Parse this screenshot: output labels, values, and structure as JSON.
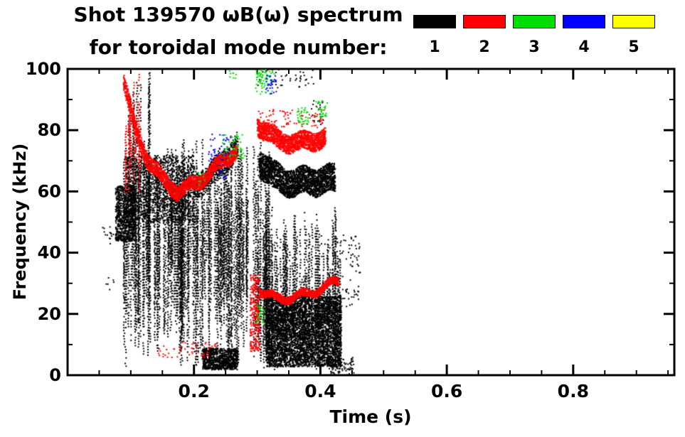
{
  "header": {
    "title": "Shot 139570 ωB(ω) spectrum",
    "subtitle": "for toroidal mode number:"
  },
  "legend": {
    "entries": [
      {
        "label": "1",
        "color": "#000000"
      },
      {
        "label": "2",
        "color": "#ff0000"
      },
      {
        "label": "3",
        "color": "#00dd00"
      },
      {
        "label": "4",
        "color": "#0000ff"
      },
      {
        "label": "5",
        "color": "#ffff00"
      }
    ]
  },
  "chart_data": {
    "type": "scatter",
    "title": "Shot 139570 ωB(ω) spectrum for toroidal mode number",
    "xlabel": "Time (s)",
    "ylabel": "Frequency (kHz)",
    "xlim": [
      0,
      0.96
    ],
    "ylim": [
      0,
      100
    ],
    "x_major_ticks": [
      0.2,
      0.4,
      0.6,
      0.8
    ],
    "x_tick_labels": [
      "0.2",
      "0.4",
      "0.6",
      "0.8"
    ],
    "x_minor_step": 0.05,
    "y_major_ticks": [
      0,
      20,
      40,
      60,
      80,
      100
    ],
    "y_tick_labels": [
      "0",
      "20",
      "40",
      "60",
      "80",
      "100"
    ],
    "y_minor_step": 10,
    "grid": false,
    "legend_position": "top-right",
    "series": [
      {
        "name": "n=1",
        "color": "#000000",
        "features": [
          {
            "type": "scatter",
            "t": [
              0.052,
              0.075
            ],
            "f": [
              43,
              49
            ],
            "points": 14
          },
          {
            "type": "scatter",
            "t": [
              0.058,
              0.072
            ],
            "f": [
              27,
              33
            ],
            "points": 6
          },
          {
            "type": "blob",
            "t": [
              0.075,
              0.107
            ],
            "f": [
              44,
              62
            ],
            "points": 800
          },
          {
            "type": "striations",
            "t": [
              0.085,
              0.285
            ],
            "count": 160,
            "fbot": [
              3,
              38
            ],
            "ftop": [
              46,
              78
            ]
          },
          {
            "type": "striations",
            "t": [
              0.095,
              0.13
            ],
            "count": 10,
            "fbot": [
              45,
              60
            ],
            "ftop": [
              85,
              100
            ]
          },
          {
            "type": "blob",
            "t": [
              0.09,
              0.2
            ],
            "f": [
              50,
              72
            ],
            "points": 1400
          },
          {
            "type": "band",
            "path": [
              [
                0.2,
                62
              ],
              [
                0.24,
                68
              ],
              [
                0.268,
                76
              ]
            ],
            "thickness": 8,
            "density": 10
          },
          {
            "type": "blob",
            "t": [
              0.213,
              0.268
            ],
            "f": [
              2,
              9
            ],
            "points": 900
          },
          {
            "type": "striations",
            "t": [
              0.293,
              0.318
            ],
            "count": 12,
            "fbot": [
              4,
              18
            ],
            "ftop": [
              58,
              78
            ]
          },
          {
            "type": "band",
            "path": [
              [
                0.303,
                70
              ],
              [
                0.325,
                65
              ],
              [
                0.36,
                63
              ],
              [
                0.4,
                64
              ],
              [
                0.423,
                64
              ]
            ],
            "thickness": 9,
            "density": 30
          },
          {
            "type": "striations",
            "t": [
              0.3,
              0.432
            ],
            "count": 80,
            "fbot": [
              2,
              18
            ],
            "ftop": [
              26,
              56
            ]
          },
          {
            "type": "blob",
            "t": [
              0.313,
              0.432
            ],
            "f": [
              3,
              26
            ],
            "points": 4200
          },
          {
            "type": "scatter",
            "t": [
              0.3,
              0.39
            ],
            "f": [
              94,
              100
            ],
            "points": 40
          },
          {
            "type": "scatter",
            "t": [
              0.4,
              0.462
            ],
            "f": [
              22,
              46
            ],
            "points": 110
          },
          {
            "type": "scatter",
            "t": [
              0.412,
              0.452
            ],
            "f": [
              0,
              6
            ],
            "points": 90
          },
          {
            "type": "scatter",
            "t": [
              0.385,
              0.405
            ],
            "f": [
              82,
              90
            ],
            "points": 25
          }
        ]
      },
      {
        "name": "n=2",
        "color": "#ff0000",
        "features": [
          {
            "type": "striations",
            "t": [
              0.088,
              0.12
            ],
            "count": 12,
            "fbot": [
              58,
              72
            ],
            "ftop": [
              80,
              100
            ]
          },
          {
            "type": "band",
            "path": [
              [
                0.088,
                96
              ],
              [
                0.105,
                81
              ],
              [
                0.125,
                71
              ],
              [
                0.15,
                64
              ],
              [
                0.175,
                60
              ]
            ],
            "thickness": 5,
            "density": 18
          },
          {
            "type": "band",
            "path": [
              [
                0.175,
                60
              ],
              [
                0.21,
                64
              ],
              [
                0.245,
                70
              ],
              [
                0.268,
                74
              ]
            ],
            "thickness": 4.5,
            "density": 16
          },
          {
            "type": "band",
            "path": [
              [
                0.3,
                82
              ],
              [
                0.33,
                77
              ],
              [
                0.368,
                76
              ],
              [
                0.408,
                78
              ]
            ],
            "thickness": 6,
            "density": 22
          },
          {
            "type": "scatter",
            "t": [
              0.3,
              0.405
            ],
            "f": [
              81,
              87
            ],
            "points": 80
          },
          {
            "type": "blob",
            "t": [
              0.288,
              0.303
            ],
            "f": [
              8,
              33
            ],
            "points": 260
          },
          {
            "type": "band",
            "path": [
              [
                0.303,
                28
              ],
              [
                0.33,
                25
              ],
              [
                0.375,
                26.5
              ],
              [
                0.428,
                31
              ]
            ],
            "thickness": 2.5,
            "density": 12
          },
          {
            "type": "scatter",
            "t": [
              0.14,
              0.235
            ],
            "f": [
              6,
              11
            ],
            "points": 55
          }
        ]
      },
      {
        "name": "n=3",
        "color": "#00dd00",
        "features": [
          {
            "type": "scatter",
            "t": [
              0.243,
              0.28
            ],
            "f": [
              70,
              79
            ],
            "points": 55
          },
          {
            "type": "scatter",
            "t": [
              0.296,
              0.327
            ],
            "f": [
              92,
              100
            ],
            "points": 70
          },
          {
            "type": "scatter",
            "t": [
              0.362,
              0.38
            ],
            "f": [
              82,
              88
            ],
            "points": 35
          },
          {
            "type": "scatter",
            "t": [
              0.392,
              0.41
            ],
            "f": [
              84,
              90
            ],
            "points": 30
          },
          {
            "type": "scatter",
            "t": [
              0.297,
              0.313
            ],
            "f": [
              17,
              23
            ],
            "points": 25
          },
          {
            "type": "scatter",
            "t": [
              0.205,
              0.22
            ],
            "f": [
              62,
              67
            ],
            "points": 8
          },
          {
            "type": "scatter",
            "t": [
              0.255,
              0.268
            ],
            "f": [
              96,
              100
            ],
            "points": 8
          }
        ]
      },
      {
        "name": "n=4",
        "color": "#0000ff",
        "features": [
          {
            "type": "scatter",
            "t": [
              0.222,
              0.258
            ],
            "f": [
              70,
              79
            ],
            "points": 40
          },
          {
            "type": "scatter",
            "t": [
              0.313,
              0.33
            ],
            "f": [
              92,
              98
            ],
            "points": 28
          },
          {
            "type": "scatter",
            "t": [
              0.238,
              0.25
            ],
            "f": [
              64,
              70
            ],
            "points": 10
          }
        ]
      },
      {
        "name": "n=5",
        "color": "#ffff00",
        "features": []
      }
    ]
  }
}
